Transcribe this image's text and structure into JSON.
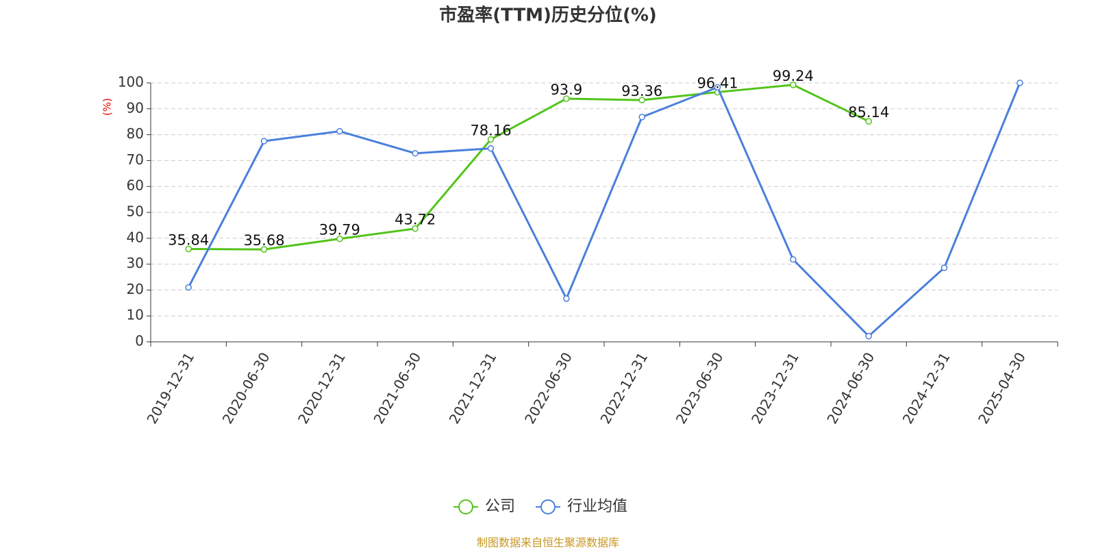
{
  "chart_data": {
    "type": "line",
    "title": "市盈率(TTM)历史分位(%)",
    "y_label": "(%)",
    "footer": "制图数据来自恒生聚源数据库",
    "categories": [
      "2019-12-31",
      "2020-06-30",
      "2020-12-31",
      "2021-06-30",
      "2021-12-31",
      "2022-06-30",
      "2022-12-31",
      "2023-06-30",
      "2023-12-31",
      "2024-06-30",
      "2024-12-31",
      "2025-04-30"
    ],
    "series": [
      {
        "name": "公司",
        "color": "#52c41a",
        "show_labels": true,
        "values": [
          35.84,
          35.68,
          39.79,
          43.72,
          78.16,
          93.9,
          93.36,
          96.41,
          99.24,
          85.14,
          null,
          null
        ]
      },
      {
        "name": "行业均值",
        "color": "#4a7fdc",
        "show_labels": false,
        "values": [
          21,
          77.5,
          81.3,
          72.8,
          74.7,
          16.7,
          86.8,
          98.3,
          31.8,
          2.2,
          28.6,
          100
        ]
      }
    ],
    "ylim": [
      0,
      100
    ],
    "yticks": [
      0,
      10,
      20,
      30,
      40,
      50,
      60,
      70,
      80,
      90,
      100
    ],
    "grid": true
  }
}
